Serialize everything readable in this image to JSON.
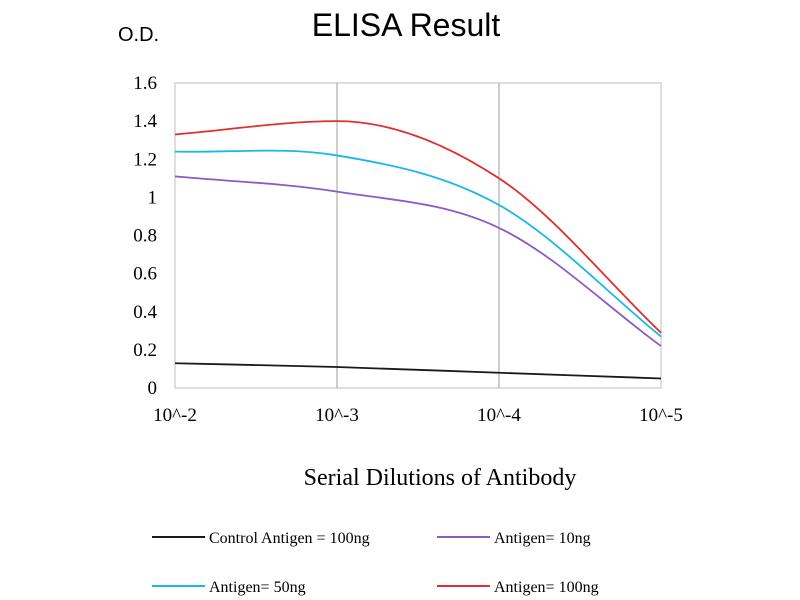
{
  "chart_data": {
    "type": "line",
    "title": "ELISA Result",
    "ylabel": "O.D.",
    "xlabel": "Serial Dilutions of Antibody",
    "x": [
      "10^-2",
      "10^-3",
      "10^-4",
      "10^-5"
    ],
    "ylim": [
      0,
      1.6
    ],
    "yticks": [
      "0",
      "0.2",
      "0.4",
      "0.6",
      "0.8",
      "1",
      "1.2",
      "1.4",
      "1.6"
    ],
    "grid": "vertical",
    "legend_position": "bottom",
    "series": [
      {
        "name": "Control Antigen = 100ng",
        "color": "#1a1a1a",
        "values": [
          0.13,
          0.11,
          0.08,
          0.05
        ]
      },
      {
        "name": "Antigen= 10ng",
        "color": "#8a5cc4",
        "values": [
          1.11,
          1.03,
          0.84,
          0.22
        ]
      },
      {
        "name": "Antigen= 50ng",
        "color": "#1ab8e6",
        "values": [
          1.24,
          1.22,
          0.96,
          0.27
        ]
      },
      {
        "name": "Antigen= 100ng",
        "color": "#e0302e",
        "values": [
          1.33,
          1.4,
          1.1,
          0.29
        ]
      }
    ]
  }
}
